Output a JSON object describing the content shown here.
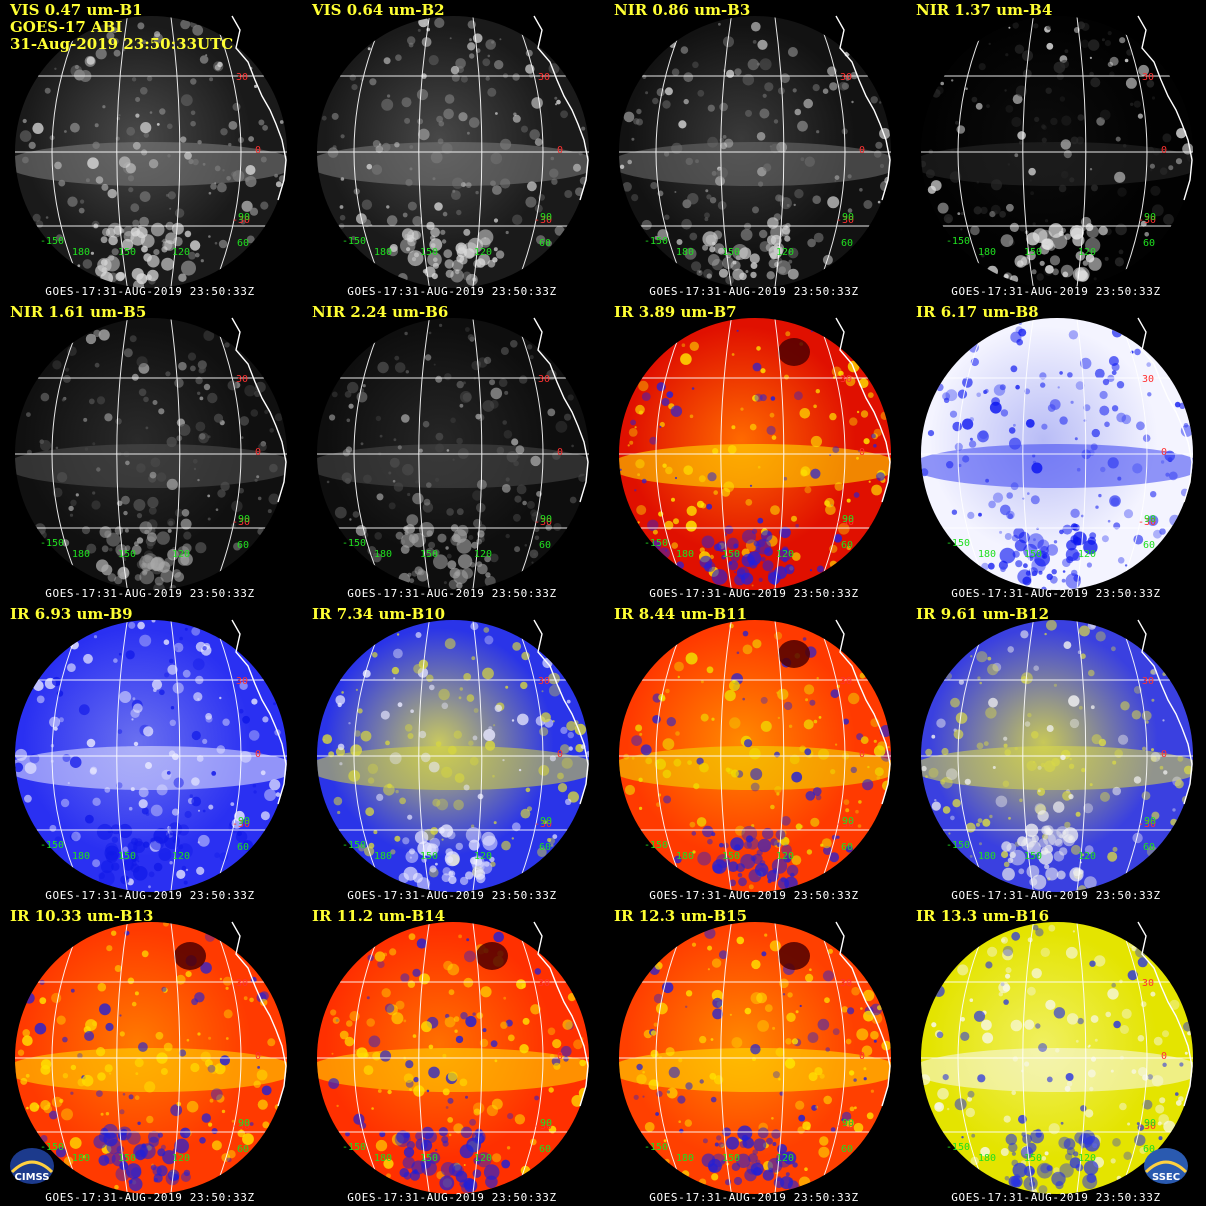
{
  "figure": {
    "line1": "GOES-17 ABI",
    "line2": "31-Aug-2019 23:50:33UTC",
    "logos": [
      {
        "text": "CIMSS",
        "icon": "cimss-logo-icon"
      },
      {
        "text": "SSEC",
        "icon": "ssec-logo-icon"
      }
    ]
  },
  "panels": [
    {
      "title": "VIS 0.47 um-B1",
      "type": "vis",
      "colors": [
        "#1a1a1a",
        "#4a4a4a",
        "#808080",
        "#d8d8d8"
      ],
      "timestamp": "GOES-17:31-AUG-2019 23:50:33Z"
    },
    {
      "title": "VIS 0.64 um-B2",
      "type": "vis",
      "colors": [
        "#1a1a1a",
        "#484848",
        "#7c7c7c",
        "#d8d8d8"
      ],
      "timestamp": "GOES-17:31-AUG-2019 23:50:33Z"
    },
    {
      "title": "NIR 0.86 um-B3",
      "type": "vis",
      "colors": [
        "#121212",
        "#3a3a3a",
        "#707070",
        "#d0d0d0"
      ],
      "timestamp": "GOES-17:31-AUG-2019 23:50:33Z"
    },
    {
      "title": "NIR 1.37 um-B4",
      "type": "vis",
      "colors": [
        "#020202",
        "#0c0c0c",
        "#2a2a2a",
        "#e0e0e0"
      ],
      "timestamp": "GOES-17:31-AUG-2019 23:50:33Z"
    },
    {
      "title": "NIR 1.61 um-B5",
      "type": "vis",
      "colors": [
        "#101010",
        "#2a2a2a",
        "#505050",
        "#a8a8a8"
      ],
      "timestamp": "GOES-17:31-AUG-2019 23:50:33Z"
    },
    {
      "title": "NIR 2.24 um-B6",
      "type": "vis",
      "colors": [
        "#0e0e0e",
        "#262626",
        "#4a4a4a",
        "#a0a0a0"
      ],
      "timestamp": "GOES-17:31-AUG-2019 23:50:33Z"
    },
    {
      "title": "IR 3.89 um-B7",
      "type": "ir",
      "colors": [
        "#e01000",
        "#ff6a00",
        "#ffe800",
        "#2020e0"
      ],
      "timestamp": "GOES-17:31-AUG-2019 23:50:33Z"
    },
    {
      "title": "IR 6.17 um-B8",
      "type": "wv",
      "colors": [
        "#f4f4ff",
        "#b8bcf6",
        "#3a44f2",
        "#0a14f0"
      ],
      "timestamp": "GOES-17:31-AUG-2019 23:50:33Z"
    },
    {
      "title": "IR 6.93 um-B9",
      "type": "wv",
      "colors": [
        "#2a30f2",
        "#6a70f0",
        "#e8e8ff",
        "#1018e8"
      ],
      "timestamp": "GOES-17:31-AUG-2019 23:50:33Z"
    },
    {
      "title": "IR 7.34 um-B10",
      "type": "wv2",
      "colors": [
        "#2a34e8",
        "#c8c860",
        "#d6d640",
        "#e8e8ff"
      ],
      "timestamp": "GOES-17:31-AUG-2019 23:50:33Z"
    },
    {
      "title": "IR 8.44 um-B11",
      "type": "ir",
      "colors": [
        "#ff3a00",
        "#ff8a00",
        "#f0e000",
        "#2020d8"
      ],
      "timestamp": "GOES-17:31-AUG-2019 23:50:33Z"
    },
    {
      "title": "IR 9.61 um-B12",
      "type": "wv2",
      "colors": [
        "#3a40e0",
        "#c8c858",
        "#d8d848",
        "#f0f0f0"
      ],
      "timestamp": "GOES-17:31-AUG-2019 23:50:33Z"
    },
    {
      "title": "IR 10.33 um-B13",
      "type": "ir",
      "colors": [
        "#ff3a00",
        "#ff7a00",
        "#ffe000",
        "#2020d8"
      ],
      "timestamp": "GOES-17:31-AUG-2019 23:50:33Z"
    },
    {
      "title": "IR 11.2 um-B14",
      "type": "ir",
      "colors": [
        "#ff3000",
        "#ff7000",
        "#ffe000",
        "#2020d8"
      ],
      "timestamp": "GOES-17:31-AUG-2019 23:50:33Z"
    },
    {
      "title": "IR 12.3 um-B15",
      "type": "ir",
      "colors": [
        "#ff4000",
        "#ff8800",
        "#ffe800",
        "#2020d8"
      ],
      "timestamp": "GOES-17:31-AUG-2019 23:50:33Z"
    },
    {
      "title": "IR 13.3 um-B16",
      "type": "wv2",
      "colors": [
        "#e4e400",
        "#f0f060",
        "#f8f8f0",
        "#2a34e0"
      ],
      "timestamp": "GOES-17:31-AUG-2019 23:50:33Z"
    }
  ],
  "grid_labels": {
    "lat": [
      "30",
      "0",
      "-30"
    ],
    "lon": [
      "-150",
      "180",
      "150",
      "120",
      "90",
      "60"
    ]
  }
}
